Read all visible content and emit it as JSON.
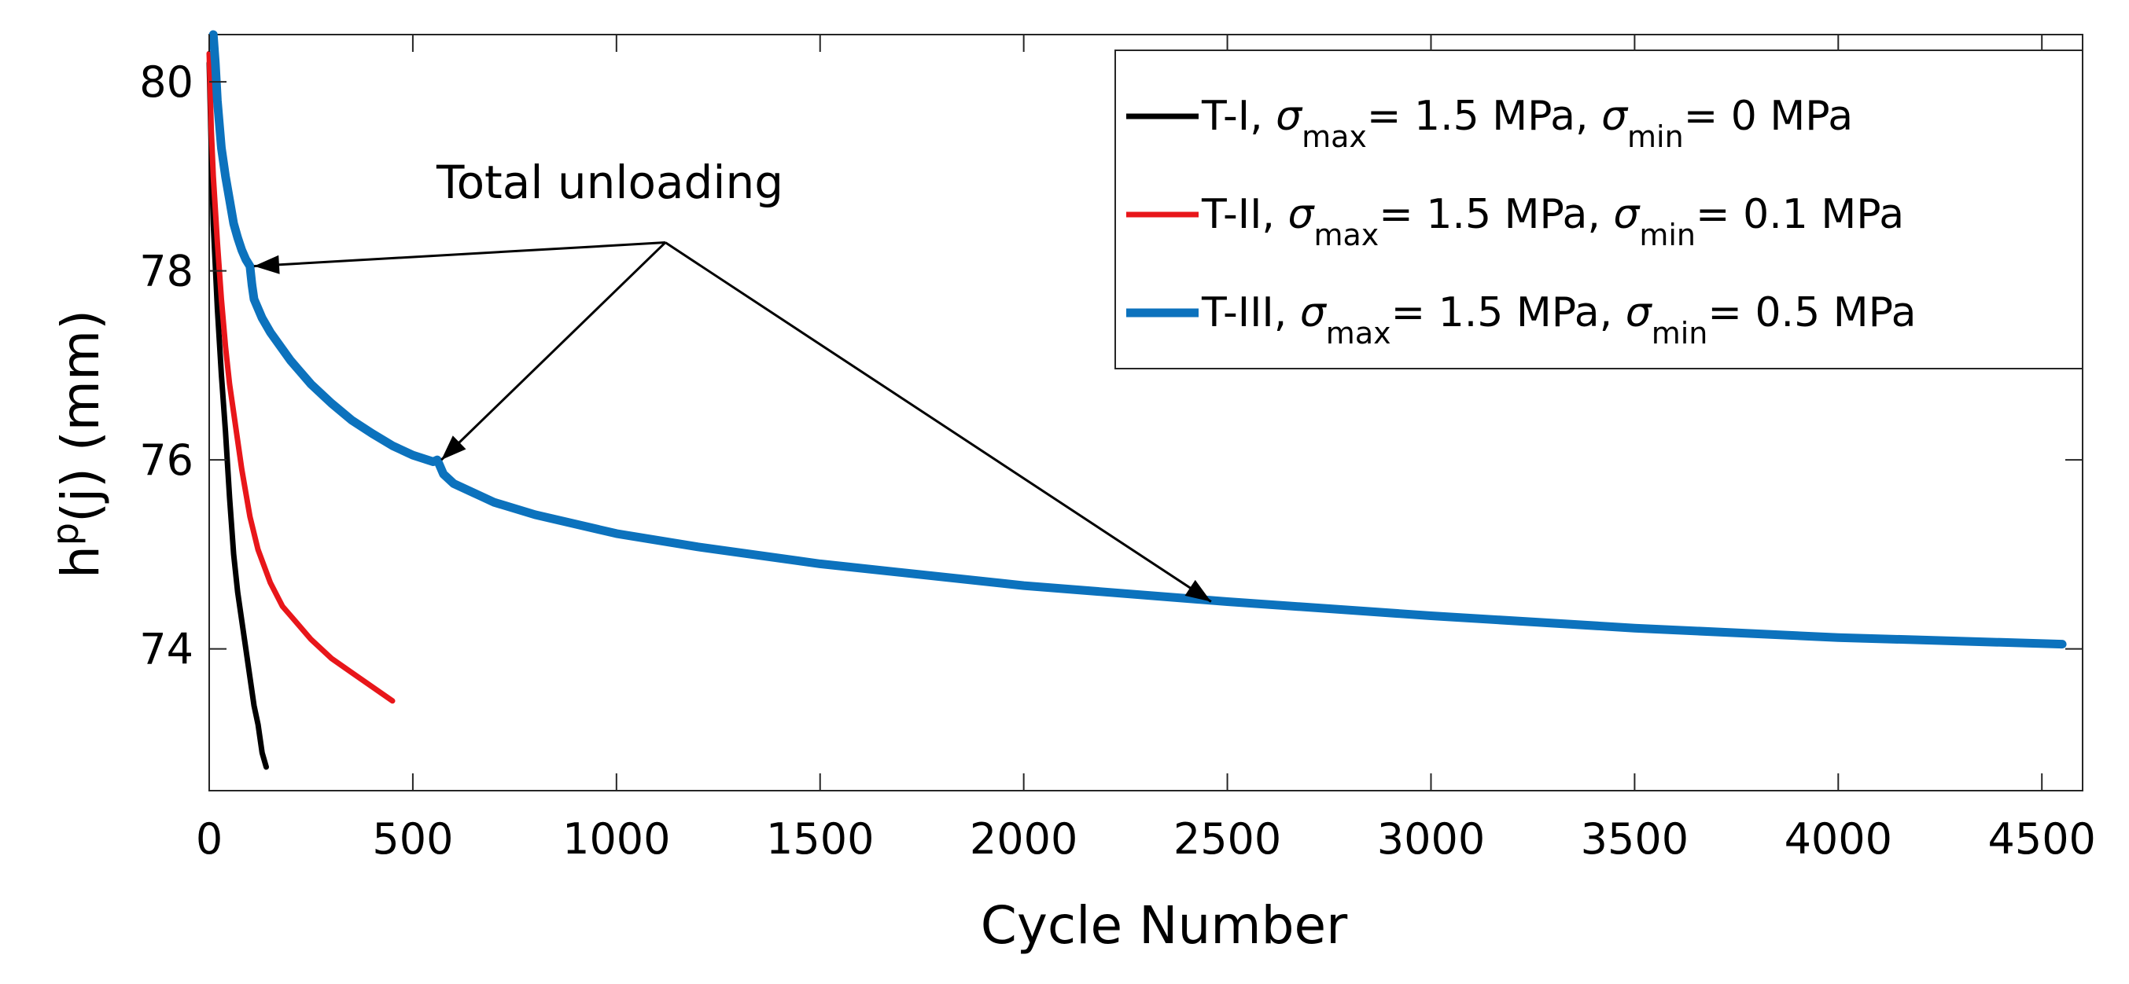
{
  "chart_data": {
    "type": "line",
    "title": "",
    "xlabel": "Cycle Number",
    "ylabel": {
      "base": "h",
      "sup": "p",
      "rest": "(j) (mm)"
    },
    "xlim": [
      0,
      4600
    ],
    "ylim": [
      72.5,
      80.5
    ],
    "xticks": [
      0,
      500,
      1000,
      1500,
      2000,
      2500,
      3000,
      3500,
      4000,
      4500
    ],
    "yticks": [
      74,
      76,
      78,
      80
    ],
    "grid": false,
    "legend_position": "top-right",
    "series": [
      {
        "name": "T-I, σmax= 1.5 MPa, σmin= 0 MPa",
        "label_parts": {
          "prefix": "T-I, ",
          "sym": "σ",
          "sub1": "max",
          "mid": "= 1.5 MPa, ",
          "sub2": "min",
          "end": "= 0 MPa"
        },
        "color": "#000000",
        "x": [
          0,
          5,
          10,
          20,
          30,
          40,
          50,
          60,
          70,
          80,
          90,
          100,
          110,
          120,
          130,
          140
        ],
        "y": [
          80.2,
          79.3,
          78.5,
          77.6,
          76.9,
          76.3,
          75.6,
          75.0,
          74.6,
          74.3,
          74.0,
          73.7,
          73.4,
          73.2,
          72.9,
          72.75
        ]
      },
      {
        "name": "T-II, σmax= 1.5 MPa, σmin= 0.1 MPa",
        "label_parts": {
          "prefix": "T-II, ",
          "sym": "σ",
          "sub1": "max",
          "mid": "= 1.5 MPa, ",
          "sub2": "min",
          "end": "= 0.1 MPa"
        },
        "color": "#e8161a",
        "x": [
          0,
          5,
          10,
          20,
          30,
          40,
          50,
          60,
          80,
          100,
          120,
          150,
          180,
          200,
          250,
          300,
          350,
          400,
          450
        ],
        "y": [
          80.3,
          79.5,
          79.0,
          78.3,
          77.7,
          77.2,
          76.8,
          76.5,
          75.9,
          75.4,
          75.05,
          74.7,
          74.45,
          74.35,
          74.1,
          73.9,
          73.75,
          73.6,
          73.45
        ]
      },
      {
        "name": "T-III, σmax= 1.5 MPa, σmin= 0.5 MPa",
        "label_parts": {
          "prefix": "T-III, ",
          "sym": "σ",
          "sub1": "max",
          "mid": "= 1.5 MPa, ",
          "sub2": "min",
          "end": "= 0.5 MPa"
        },
        "color": "#0c72bd",
        "x": [
          10,
          15,
          20,
          30,
          40,
          50,
          60,
          70,
          80,
          90,
          100,
          105,
          110,
          130,
          150,
          200,
          250,
          300,
          350,
          400,
          450,
          500,
          550,
          560,
          575,
          600,
          650,
          700,
          800,
          1000,
          1200,
          1500,
          2000,
          2500,
          3000,
          3500,
          4000,
          4550
        ],
        "y": [
          80.5,
          80.2,
          79.8,
          79.3,
          79.0,
          78.75,
          78.5,
          78.35,
          78.22,
          78.12,
          78.05,
          77.85,
          77.7,
          77.5,
          77.35,
          77.05,
          76.8,
          76.6,
          76.42,
          76.28,
          76.15,
          76.05,
          75.98,
          76.0,
          75.85,
          75.75,
          75.65,
          75.55,
          75.42,
          75.22,
          75.08,
          74.9,
          74.67,
          74.5,
          74.35,
          74.22,
          74.12,
          74.05
        ]
      }
    ],
    "annotations": [
      {
        "text": "Total unloading",
        "origin": [
          1120,
          78.3
        ],
        "targets": [
          [
            110,
            78.05
          ],
          [
            570,
            76.0
          ],
          [
            2460,
            74.5
          ]
        ]
      }
    ]
  }
}
